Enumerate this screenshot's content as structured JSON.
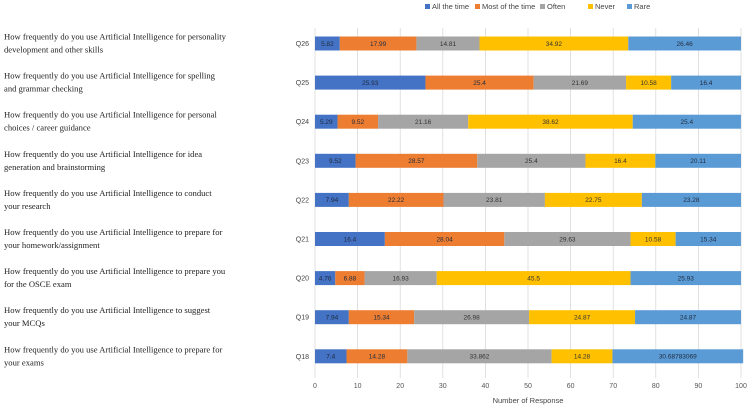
{
  "chart_data": {
    "type": "bar",
    "orientation": "horizontal-stacked",
    "xlabel": "Number of Response",
    "xlim": [
      0,
      100
    ],
    "xticks": [
      "0",
      "10",
      "20",
      "30",
      "40",
      "50",
      "60",
      "70",
      "80",
      "90",
      "100"
    ],
    "legend_position": "top",
    "grid": "vertical",
    "colors": [
      "#4472c4",
      "#ed7d31",
      "#a5a5a5",
      "#ffc000",
      "#5b9bd5"
    ],
    "series": [
      {
        "name": "All the time",
        "values": [
          5.82,
          25.93,
          5.29,
          9.52,
          7.94,
          16.4,
          4.76,
          7.94,
          7.4
        ]
      },
      {
        "name": "Most of the time",
        "values": [
          17.99,
          25.4,
          9.52,
          28.57,
          22.22,
          28.04,
          6.88,
          15.34,
          14.28
        ]
      },
      {
        "name": "Often",
        "values": [
          14.81,
          21.69,
          21.16,
          25.4,
          23.81,
          29.63,
          16.93,
          26.98,
          33.862
        ]
      },
      {
        "name": "Never",
        "values": [
          34.92,
          10.58,
          38.62,
          16.4,
          22.75,
          10.58,
          45.5,
          24.87,
          14.28
        ]
      },
      {
        "name": "Rare",
        "values": [
          26.46,
          16.4,
          25.4,
          20.11,
          23.28,
          15.34,
          25.93,
          24.87,
          30.68783069
        ]
      }
    ],
    "value_labels": [
      [
        "5.82",
        "25.93",
        "5.29",
        "9.52",
        "7.94",
        "16.4",
        "4.76",
        "7.94",
        "7.4"
      ],
      [
        "17.99",
        "25.4",
        "9.52",
        "28.57",
        "22.22",
        "28.04",
        "6.88",
        "15.34",
        "14.28"
      ],
      [
        "14.81",
        "21.69",
        "21.16",
        "25.4",
        "23.81",
        "29.63",
        "16.93",
        "26.98",
        "33.862"
      ],
      [
        "34.92",
        "10.58",
        "38.62",
        "16.4",
        "22.75",
        "10.58",
        "45.5",
        "24.87",
        "14.28"
      ],
      [
        "26.46",
        "16.4",
        "25.4",
        "20.11",
        "23.28",
        "15.34",
        "25.93",
        "24.87",
        "30.68783069"
      ]
    ],
    "categories": [
      {
        "code": "Q26",
        "lines": [
          "How frequently  do you use Artificial Intelligence  for personality",
          "development  and other skills"
        ]
      },
      {
        "code": "Q25",
        "lines": [
          "How frequently  do you use Artificial Intelligence  for spelling",
          "and grammar  checking"
        ]
      },
      {
        "code": "Q24",
        "lines": [
          "How frequently  do you use Artificial Intelligence  for personal",
          "choices  / career guidance"
        ]
      },
      {
        "code": "Q23",
        "lines": [
          "How frequently  do you use Artificial Intelligence  for idea",
          "generation  and brainstorming"
        ]
      },
      {
        "code": "Q22",
        "lines": [
          "How frequently  do you use Artificial  Intelligence  to conduct",
          "your research"
        ]
      },
      {
        "code": "Q21",
        "lines": [
          "How frequently  do you use Artificial  Intelligence  to prepare for",
          "your homework/assignment"
        ]
      },
      {
        "code": "Q20",
        "lines": [
          "How frequently  do you use Artificial  Intelligence  to prepare you",
          "for the OSCE exam"
        ]
      },
      {
        "code": "Q19",
        "lines": [
          "How frequently  do you use Artificial  Intelligence  to suggest",
          "your MCQs"
        ]
      },
      {
        "code": "Q18",
        "lines": [
          "How frequently  do you use Artificial  Intelligence  to prepare for",
          "your exams"
        ]
      }
    ]
  }
}
